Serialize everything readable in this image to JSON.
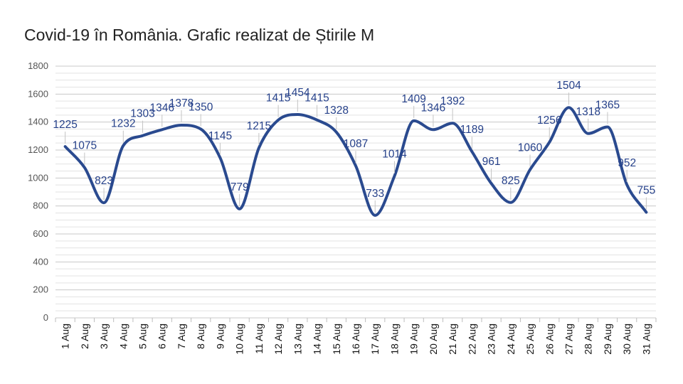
{
  "chart_data": {
    "type": "line",
    "title": "Covid-19 în România. Grafic realizat de Știrile M",
    "xlabel": "",
    "ylabel": "",
    "ylim": [
      0,
      1800
    ],
    "yticks": [
      0,
      200,
      400,
      600,
      800,
      1000,
      1200,
      1400,
      1600,
      1800
    ],
    "grid": true,
    "smooth": true,
    "line_color": "#2a4a8f",
    "label_color": "#26418a",
    "grid_color": "#d4d4d4",
    "categories": [
      "1 Aug",
      "2 Aug",
      "3 Aug",
      "4 Aug",
      "5 Aug",
      "6 Aug",
      "7 Aug",
      "8 Aug",
      "9 Aug",
      "10 Aug",
      "11 Aug",
      "12 Aug",
      "13 Aug",
      "14 Aug",
      "15 Aug",
      "16 Aug",
      "17 Aug",
      "18 Aug",
      "19 Aug",
      "20 Aug",
      "21 Aug",
      "22 Aug",
      "23 Aug",
      "24 Aug",
      "25 Aug",
      "26 Aug",
      "27 Aug",
      "28 Aug",
      "29 Aug",
      "30 Aug",
      "31 Aug"
    ],
    "series": [
      {
        "values": [
          1225,
          1075,
          823,
          1232,
          1303,
          1346,
          1378,
          1350,
          1145,
          779,
          1215,
          1415,
          1454,
          1415,
          1328,
          1087,
          733,
          1014,
          1409,
          1346,
          1392,
          1189,
          961,
          825,
          1060,
          1256,
          1504,
          1318,
          1365,
          952,
          755
        ]
      }
    ]
  }
}
